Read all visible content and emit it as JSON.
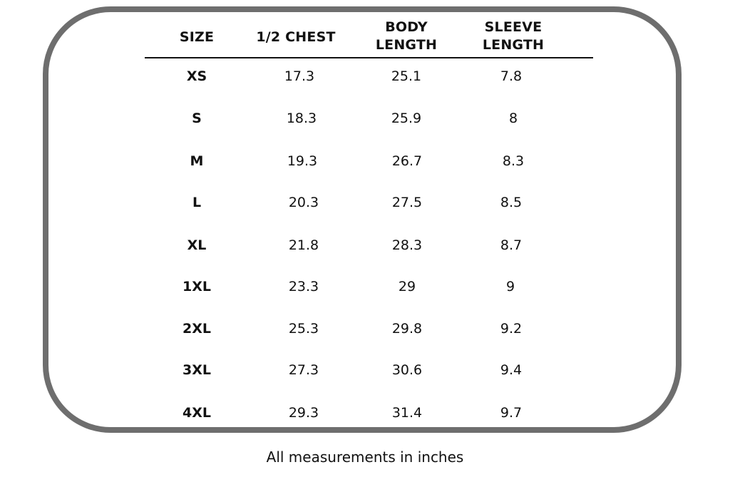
{
  "headers": {
    "size": "SIZE",
    "chest": "1/2 CHEST",
    "body_length_line1": "BODY",
    "body_length_line2": "LENGTH",
    "sleeve_length_line1": "SLEEVE",
    "sleeve_length_line2": "LENGTH"
  },
  "rows": [
    {
      "size": "XS",
      "chest": "17.3",
      "body": "25.1",
      "sleeve": "7.8"
    },
    {
      "size": "S",
      "chest": "18.3",
      "body": "25.9",
      "sleeve": "8"
    },
    {
      "size": "M",
      "chest": "19.3",
      "body": "26.7",
      "sleeve": "8.3"
    },
    {
      "size": "L",
      "chest": "20.3",
      "body": "27.5",
      "sleeve": "8.5"
    },
    {
      "size": "XL",
      "chest": "21.8",
      "body": "28.3",
      "sleeve": "8.7"
    },
    {
      "size": "1XL",
      "chest": "23.3",
      "body": "29",
      "sleeve": "9"
    },
    {
      "size": "2XL",
      "chest": "25.3",
      "body": "29.8",
      "sleeve": "9.2"
    },
    {
      "size": "3XL",
      "chest": "27.3",
      "body": "30.6",
      "sleeve": "9.4"
    },
    {
      "size": "4XL",
      "chest": "29.3",
      "body": "31.4",
      "sleeve": "9.7"
    }
  ],
  "caption": "All measurements in inches",
  "colors": {
    "frame": "#6e6e6e",
    "text": "#111111",
    "background": "#ffffff"
  }
}
